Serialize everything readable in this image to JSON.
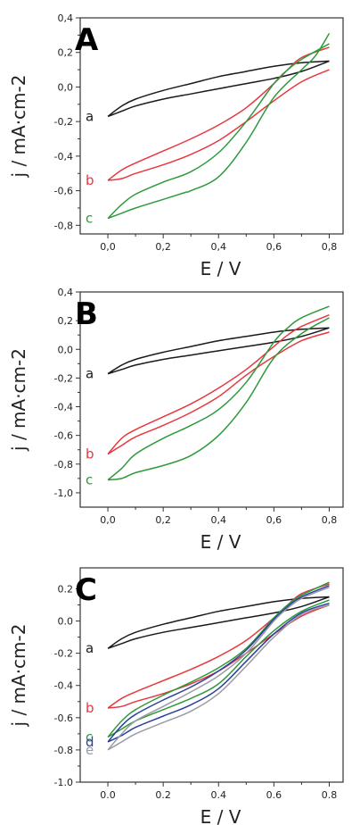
{
  "chart_data": [
    {
      "type": "line",
      "panel": "A",
      "xlabel": "E / V",
      "ylabel": "j / mA·cm-2",
      "xlim": [
        -0.1,
        0.85
      ],
      "ylim": [
        -0.85,
        0.4
      ],
      "xticks": [
        0.0,
        0.2,
        0.4,
        0.6,
        0.8
      ],
      "xtick_labels": [
        "0,0",
        "0,2",
        "0,4",
        "0,6",
        "0,8"
      ],
      "yticks": [
        0.4,
        0.2,
        0.0,
        -0.2,
        -0.4,
        -0.6,
        -0.8
      ],
      "ytick_labels": [
        "0,4",
        "0,2",
        "0,0",
        "-0,2",
        "-0,4",
        "-0,6",
        "-0,8"
      ],
      "grid": false,
      "series": [
        {
          "name": "a",
          "color": "#1a1a1a",
          "anodic": {
            "x": [
              0.0,
              0.05,
              0.1,
              0.2,
              0.3,
              0.4,
              0.5,
              0.6,
              0.7,
              0.8
            ],
            "y": [
              -0.17,
              -0.11,
              -0.07,
              -0.02,
              0.02,
              0.06,
              0.09,
              0.12,
              0.14,
              0.15
            ]
          },
          "cathodic": {
            "x": [
              0.8,
              0.7,
              0.6,
              0.5,
              0.4,
              0.3,
              0.2,
              0.1,
              0.05,
              0.0
            ],
            "y": [
              0.15,
              0.09,
              0.05,
              0.02,
              -0.01,
              -0.04,
              -0.07,
              -0.11,
              -0.14,
              -0.17
            ]
          }
        },
        {
          "name": "b",
          "color": "#e8383d",
          "anodic": {
            "x": [
              0.0,
              0.05,
              0.1,
              0.2,
              0.3,
              0.4,
              0.5,
              0.6,
              0.65,
              0.7,
              0.8
            ],
            "y": [
              -0.54,
              -0.48,
              -0.44,
              -0.37,
              -0.3,
              -0.22,
              -0.12,
              0.02,
              0.1,
              0.17,
              0.23
            ]
          },
          "cathodic": {
            "x": [
              0.8,
              0.7,
              0.6,
              0.5,
              0.4,
              0.3,
              0.2,
              0.1,
              0.05,
              0.0
            ],
            "y": [
              0.1,
              0.03,
              -0.08,
              -0.2,
              -0.31,
              -0.39,
              -0.45,
              -0.5,
              -0.53,
              -0.54
            ]
          }
        },
        {
          "name": "c",
          "color": "#2e9a3c",
          "anodic": {
            "x": [
              0.0,
              0.05,
              0.1,
              0.2,
              0.3,
              0.4,
              0.5,
              0.6,
              0.65,
              0.7,
              0.8
            ],
            "y": [
              -0.76,
              -0.68,
              -0.62,
              -0.55,
              -0.49,
              -0.38,
              -0.2,
              0.02,
              0.1,
              0.16,
              0.25
            ]
          },
          "cathodic": {
            "x": [
              0.8,
              0.75,
              0.7,
              0.6,
              0.5,
              0.4,
              0.3,
              0.28,
              0.2,
              0.1,
              0.05,
              0.0
            ],
            "y": [
              0.31,
              0.18,
              0.1,
              -0.06,
              -0.32,
              -0.52,
              -0.6,
              -0.61,
              -0.65,
              -0.7,
              -0.73,
              -0.76
            ]
          }
        }
      ]
    },
    {
      "type": "line",
      "panel": "B",
      "xlabel": "E / V",
      "ylabel": "j / mA·cm-2",
      "xlim": [
        -0.1,
        0.85
      ],
      "ylim": [
        -1.1,
        0.4
      ],
      "xticks": [
        0.0,
        0.2,
        0.4,
        0.6,
        0.8
      ],
      "xtick_labels": [
        "0,0",
        "0,2",
        "0,4",
        "0,6",
        "0,8"
      ],
      "yticks": [
        0.4,
        0.2,
        0.0,
        -0.2,
        -0.4,
        -0.6,
        -0.8,
        -1.0
      ],
      "ytick_labels": [
        "0,4",
        "0,2",
        "0,0",
        "-0,2",
        "-0,4",
        "-0,6",
        "-0,8",
        "-1,0"
      ],
      "grid": false,
      "series": [
        {
          "name": "a",
          "color": "#1a1a1a",
          "anodic": {
            "x": [
              0.0,
              0.05,
              0.1,
              0.2,
              0.3,
              0.4,
              0.5,
              0.6,
              0.7,
              0.8
            ],
            "y": [
              -0.17,
              -0.11,
              -0.07,
              -0.02,
              0.02,
              0.06,
              0.09,
              0.12,
              0.14,
              0.15
            ]
          },
          "cathodic": {
            "x": [
              0.8,
              0.7,
              0.6,
              0.5,
              0.4,
              0.3,
              0.2,
              0.1,
              0.05,
              0.0
            ],
            "y": [
              0.15,
              0.09,
              0.05,
              0.02,
              -0.01,
              -0.04,
              -0.07,
              -0.11,
              -0.14,
              -0.17
            ]
          }
        },
        {
          "name": "b",
          "color": "#e8383d",
          "anodic": {
            "x": [
              0.0,
              0.05,
              0.1,
              0.2,
              0.3,
              0.4,
              0.5,
              0.6,
              0.65,
              0.7,
              0.8
            ],
            "y": [
              -0.73,
              -0.62,
              -0.56,
              -0.47,
              -0.38,
              -0.27,
              -0.14,
              0.02,
              0.1,
              0.16,
              0.24
            ]
          },
          "cathodic": {
            "x": [
              0.8,
              0.7,
              0.6,
              0.5,
              0.4,
              0.3,
              0.2,
              0.1,
              0.05,
              0.0
            ],
            "y": [
              0.12,
              0.06,
              -0.05,
              -0.18,
              -0.33,
              -0.44,
              -0.53,
              -0.61,
              -0.67,
              -0.73
            ]
          }
        },
        {
          "name": "c",
          "color": "#2e9a3c",
          "anodic": {
            "x": [
              0.0,
              0.05,
              0.1,
              0.2,
              0.3,
              0.4,
              0.5,
              0.6,
              0.65,
              0.7,
              0.8
            ],
            "y": [
              -0.91,
              -0.83,
              -0.73,
              -0.62,
              -0.53,
              -0.42,
              -0.23,
              0.05,
              0.15,
              0.22,
              0.3
            ]
          },
          "cathodic": {
            "x": [
              0.8,
              0.7,
              0.6,
              0.5,
              0.4,
              0.3,
              0.2,
              0.1,
              0.05,
              0.0
            ],
            "y": [
              0.22,
              0.11,
              -0.06,
              -0.37,
              -0.6,
              -0.74,
              -0.81,
              -0.86,
              -0.9,
              -0.91
            ]
          }
        }
      ]
    },
    {
      "type": "line",
      "panel": "C",
      "xlabel": "E / V",
      "ylabel": "j / mA·cm-2",
      "xlim": [
        -0.1,
        0.85
      ],
      "ylim": [
        -1.0,
        0.33
      ],
      "xticks": [
        0.0,
        0.2,
        0.4,
        0.6,
        0.8
      ],
      "xtick_labels": [
        "0.0",
        "0.2",
        "0.4",
        "0.6",
        "0.8"
      ],
      "yticks": [
        0.2,
        0.0,
        -0.2,
        -0.4,
        -0.6,
        -0.8,
        -1.0
      ],
      "ytick_labels": [
        "0.2",
        "0.0",
        "-0.2",
        "-0.4",
        "-0.6",
        "-0.8",
        "-1.0"
      ],
      "grid": false,
      "series": [
        {
          "name": "a",
          "color": "#1a1a1a",
          "anodic": {
            "x": [
              0.0,
              0.05,
              0.1,
              0.2,
              0.3,
              0.4,
              0.5,
              0.6,
              0.7,
              0.8
            ],
            "y": [
              -0.17,
              -0.11,
              -0.07,
              -0.02,
              0.02,
              0.06,
              0.09,
              0.12,
              0.14,
              0.15
            ]
          },
          "cathodic": {
            "x": [
              0.8,
              0.7,
              0.6,
              0.5,
              0.4,
              0.3,
              0.2,
              0.1,
              0.05,
              0.0
            ],
            "y": [
              0.15,
              0.09,
              0.05,
              0.02,
              -0.01,
              -0.04,
              -0.07,
              -0.11,
              -0.14,
              -0.17
            ]
          }
        },
        {
          "name": "b",
          "color": "#e8383d",
          "anodic": {
            "x": [
              0.0,
              0.05,
              0.1,
              0.2,
              0.3,
              0.4,
              0.5,
              0.6,
              0.65,
              0.7,
              0.8
            ],
            "y": [
              -0.54,
              -0.48,
              -0.44,
              -0.37,
              -0.3,
              -0.22,
              -0.12,
              0.02,
              0.1,
              0.17,
              0.23
            ]
          },
          "cathodic": {
            "x": [
              0.8,
              0.7,
              0.6,
              0.5,
              0.4,
              0.3,
              0.2,
              0.1,
              0.05,
              0.0
            ],
            "y": [
              0.1,
              0.03,
              -0.08,
              -0.2,
              -0.31,
              -0.39,
              -0.45,
              -0.5,
              -0.53,
              -0.54
            ]
          }
        },
        {
          "name": "c",
          "color": "#2e9a3c",
          "anodic": {
            "x": [
              0.0,
              0.05,
              0.1,
              0.2,
              0.3,
              0.4,
              0.5,
              0.6,
              0.65,
              0.7,
              0.8
            ],
            "y": [
              -0.72,
              -0.62,
              -0.55,
              -0.46,
              -0.38,
              -0.29,
              -0.17,
              0.02,
              0.1,
              0.16,
              0.24
            ]
          },
          "cathodic": {
            "x": [
              0.8,
              0.7,
              0.6,
              0.5,
              0.4,
              0.3,
              0.2,
              0.1,
              0.05,
              0.0
            ],
            "y": [
              0.13,
              0.06,
              -0.06,
              -0.22,
              -0.39,
              -0.48,
              -0.55,
              -0.62,
              -0.67,
              -0.72
            ]
          }
        },
        {
          "name": "d",
          "color": "#2b3f9e",
          "anodic": {
            "x": [
              0.0,
              0.05,
              0.1,
              0.2,
              0.3,
              0.4,
              0.5,
              0.6,
              0.65,
              0.7,
              0.8
            ],
            "y": [
              -0.75,
              -0.65,
              -0.58,
              -0.49,
              -0.41,
              -0.31,
              -0.18,
              0.01,
              0.09,
              0.15,
              0.22
            ]
          },
          "cathodic": {
            "x": [
              0.8,
              0.7,
              0.6,
              0.5,
              0.4,
              0.3,
              0.2,
              0.1,
              0.05,
              0.0
            ],
            "y": [
              0.11,
              0.05,
              -0.08,
              -0.25,
              -0.42,
              -0.52,
              -0.59,
              -0.66,
              -0.71,
              -0.75
            ]
          }
        },
        {
          "name": "e",
          "color": "#9a9aa6",
          "anodic": {
            "x": [
              0.0,
              0.05,
              0.1,
              0.2,
              0.3,
              0.4,
              0.5,
              0.6,
              0.65,
              0.7,
              0.8
            ],
            "y": [
              -0.8,
              -0.7,
              -0.62,
              -0.53,
              -0.44,
              -0.34,
              -0.2,
              0.0,
              0.08,
              0.14,
              0.21
            ]
          },
          "cathodic": {
            "x": [
              0.8,
              0.7,
              0.6,
              0.5,
              0.4,
              0.3,
              0.2,
              0.1,
              0.05,
              0.0
            ],
            "y": [
              0.1,
              0.04,
              -0.1,
              -0.28,
              -0.45,
              -0.56,
              -0.63,
              -0.7,
              -0.75,
              -0.8
            ]
          }
        }
      ]
    }
  ]
}
